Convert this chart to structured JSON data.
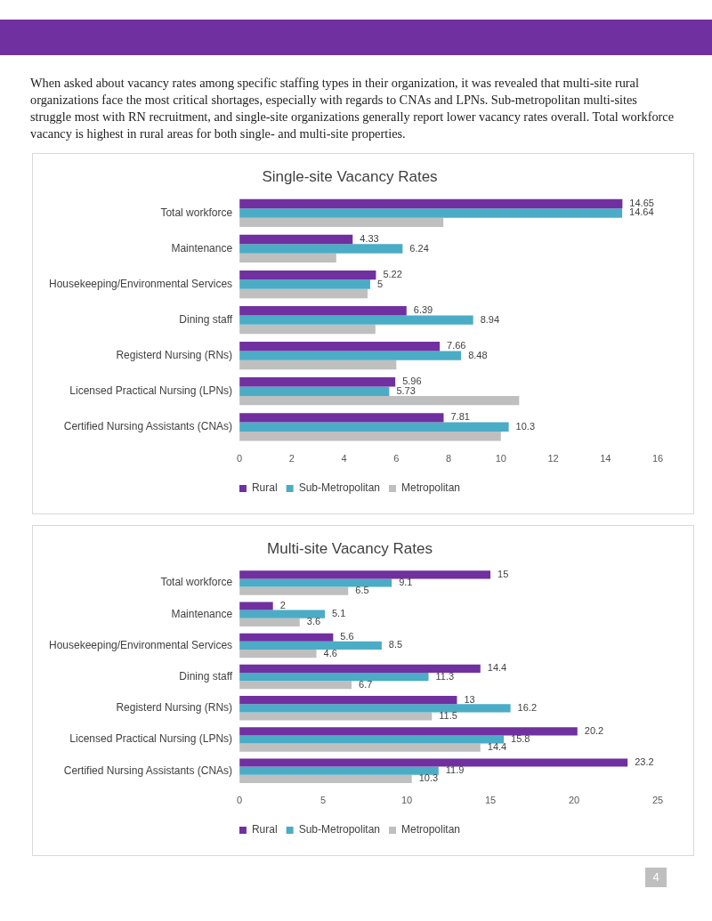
{
  "chart_data": [
    {
      "type": "bar",
      "orientation": "horizontal",
      "title": "Single-site Vacancy Rates",
      "annotations": [
        "When asked about vacancy rates among specific staffing types in their organization, it was revealed that multi-site rural organizations face the most critical shortages, especially with regards to CNAs and LPNs. Sub-metropolitan multi-sites struggle most with RN recruitment, and single-site organizations generally report lower vacancy rates overall. Total workforce vacancy is highest in rural areas for both single- and multi-site properties."
      ],
      "categories": [
        "Total workforce",
        "Maintenance",
        "Housekeeping/Environmental Services",
        "Dining staff",
        "Registerd Nursing (RNs)",
        "Licensed Practical Nursing (LPNs)",
        "Certified Nursing Assistants (CNAs)"
      ],
      "series": [
        {
          "name": "Rural",
          "color": "#7030a0",
          "values": [
            14.65,
            4.33,
            5.22,
            6.39,
            7.66,
            5.96,
            7.81
          ],
          "value_labels": [
            "14.65",
            "4.33",
            "5.22",
            "6.39",
            "7.66",
            "5.96",
            "7.81"
          ]
        },
        {
          "name": "Sub-Metropolitan",
          "color": "#4bacc6",
          "values": [
            14.64,
            6.24,
            5,
            8.94,
            8.48,
            5.73,
            10.3
          ],
          "value_labels": [
            "14.64",
            "6.24",
            "5",
            "8.94",
            "8.48",
            "5.73",
            "10.3"
          ]
        },
        {
          "name": "Metropolitan",
          "color": "#bfbfbf",
          "values": [
            7.8,
            3.7,
            4.9,
            5.2,
            6.0,
            10.7,
            10.0
          ]
        }
      ],
      "xlim": [
        0,
        16
      ],
      "xticks": [
        0,
        2,
        4,
        6,
        8,
        10,
        12,
        14,
        16
      ],
      "legend": "bottom"
    },
    {
      "type": "bar",
      "orientation": "horizontal",
      "title": "Multi-site Vacancy Rates",
      "annotations": [
        "4"
      ],
      "categories": [
        "Total workforce",
        "Maintenance",
        "Housekeeping/Environmental Services",
        "Dining staff",
        "Registerd Nursing (RNs)",
        "Licensed Practical Nursing (LPNs)",
        "Certified Nursing Assistants (CNAs)"
      ],
      "series": [
        {
          "name": "Rural",
          "color": "#7030a0",
          "values": [
            15,
            2,
            5.6,
            14.4,
            13,
            20.2,
            23.2
          ]
        },
        {
          "name": "Sub-Metropolitan",
          "color": "#4bacc6",
          "values": [
            9.1,
            5.1,
            8.5,
            11.3,
            16.2,
            15.8,
            11.9
          ]
        },
        {
          "name": "Metropolitan",
          "color": "#bfbfbf",
          "values": [
            6.5,
            3.6,
            4.6,
            6.7,
            11.5,
            14.4,
            10.3
          ]
        }
      ],
      "xlim": [
        0,
        25
      ],
      "xticks": [
        0,
        5,
        10,
        15,
        20,
        25
      ],
      "legend": "bottom",
      "data_labels": true
    }
  ]
}
